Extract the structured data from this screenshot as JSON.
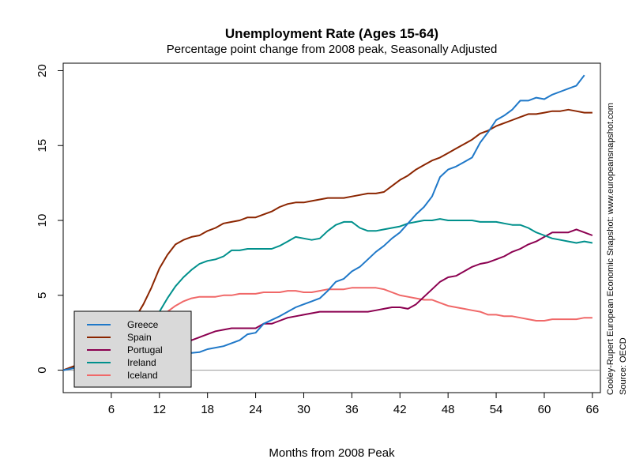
{
  "chart_data": {
    "type": "line",
    "title": "Unemployment Rate (Ages 15-64)",
    "subtitle": "Percentage point change from 2008 peak, Seasonally Adjusted",
    "xlabel": "Months from 2008 Peak",
    "ylabel": "",
    "xlim": [
      0,
      67
    ],
    "ylim": [
      -1.5,
      20.5
    ],
    "x_ticks": [
      6,
      12,
      18,
      24,
      30,
      36,
      42,
      48,
      54,
      60,
      66
    ],
    "y_ticks": [
      0,
      5,
      10,
      15,
      20
    ],
    "baseline": 0,
    "grid": false,
    "legend_position": "bottom-left",
    "source_note": "Cooley-Rupert European Economic Snapshot: www.europeansnapshot.com",
    "source": "Source: OECD",
    "series": [
      {
        "name": "Greece",
        "color": "#1f78c8",
        "x": [
          0,
          3,
          6,
          9,
          12,
          15,
          17,
          18,
          20,
          22,
          23,
          24,
          25,
          27,
          29,
          31,
          32,
          33,
          34,
          35,
          36,
          37,
          38,
          39,
          40,
          41,
          42,
          43,
          44,
          45,
          46,
          47,
          48,
          49,
          50,
          51,
          52,
          53,
          54,
          55,
          56,
          57,
          58,
          59,
          60,
          61,
          62,
          63,
          64,
          65
        ],
        "values": [
          0,
          0.3,
          0.5,
          0.7,
          0.9,
          1.1,
          1.2,
          1.4,
          1.6,
          2.0,
          2.4,
          2.5,
          3.1,
          3.6,
          4.2,
          4.6,
          4.8,
          5.3,
          5.9,
          6.1,
          6.6,
          6.9,
          7.4,
          7.9,
          8.3,
          8.8,
          9.2,
          9.8,
          10.4,
          10.9,
          11.6,
          12.9,
          13.4,
          13.6,
          13.9,
          14.2,
          15.2,
          15.9,
          16.7,
          17.0,
          17.4,
          18.0,
          18.0,
          18.2,
          18.1,
          18.4,
          18.6,
          18.8,
          19.0,
          19.7
        ]
      },
      {
        "name": "Spain",
        "color": "#8b2500",
        "x": [
          0,
          3,
          6,
          9,
          10,
          11,
          12,
          13,
          14,
          15,
          16,
          17,
          18,
          19,
          20,
          21,
          22,
          23,
          24,
          25,
          26,
          27,
          28,
          29,
          30,
          31,
          32,
          33,
          34,
          35,
          36,
          37,
          38,
          39,
          40,
          41,
          42,
          43,
          44,
          45,
          46,
          47,
          48,
          49,
          50,
          51,
          52,
          53,
          54,
          55,
          56,
          57,
          58,
          59,
          60,
          61,
          62,
          63,
          64,
          65,
          66
        ],
        "values": [
          0,
          0.6,
          1.8,
          3.5,
          4.4,
          5.5,
          6.8,
          7.7,
          8.4,
          8.7,
          8.9,
          9.0,
          9.3,
          9.5,
          9.8,
          9.9,
          10.0,
          10.2,
          10.2,
          10.4,
          10.6,
          10.9,
          11.1,
          11.2,
          11.2,
          11.3,
          11.4,
          11.5,
          11.5,
          11.5,
          11.6,
          11.7,
          11.8,
          11.8,
          11.9,
          12.3,
          12.7,
          13.0,
          13.4,
          13.7,
          14.0,
          14.2,
          14.5,
          14.8,
          15.1,
          15.4,
          15.8,
          16.0,
          16.3,
          16.5,
          16.7,
          16.9,
          17.1,
          17.1,
          17.2,
          17.3,
          17.3,
          17.4,
          17.3,
          17.2,
          17.2
        ]
      },
      {
        "name": "Portugal",
        "color": "#8b0050",
        "x": [
          0,
          3,
          6,
          9,
          12,
          15,
          16,
          17,
          18,
          19,
          20,
          21,
          22,
          23,
          24,
          25,
          26,
          27,
          28,
          29,
          30,
          31,
          32,
          33,
          34,
          35,
          36,
          37,
          38,
          39,
          40,
          41,
          42,
          43,
          44,
          45,
          46,
          47,
          48,
          49,
          50,
          51,
          52,
          53,
          54,
          55,
          56,
          57,
          58,
          59,
          60,
          61,
          62,
          63,
          64,
          65,
          66
        ],
        "values": [
          0,
          0.5,
          0.9,
          1.2,
          1.5,
          1.8,
          2.0,
          2.2,
          2.4,
          2.6,
          2.7,
          2.8,
          2.8,
          2.8,
          2.8,
          3.1,
          3.1,
          3.3,
          3.5,
          3.6,
          3.7,
          3.8,
          3.9,
          3.9,
          3.9,
          3.9,
          3.9,
          3.9,
          3.9,
          4.0,
          4.1,
          4.2,
          4.2,
          4.1,
          4.4,
          4.9,
          5.4,
          5.9,
          6.2,
          6.3,
          6.6,
          6.9,
          7.1,
          7.2,
          7.4,
          7.6,
          7.9,
          8.1,
          8.4,
          8.6,
          8.9,
          9.2,
          9.2,
          9.2,
          9.4,
          9.2,
          9.0
        ]
      },
      {
        "name": "Ireland",
        "color": "#00908c",
        "x": [
          0,
          3,
          6,
          9,
          11,
          12,
          13,
          14,
          15,
          16,
          17,
          18,
          19,
          20,
          21,
          22,
          23,
          24,
          25,
          26,
          27,
          28,
          29,
          30,
          31,
          32,
          33,
          34,
          35,
          36,
          37,
          38,
          39,
          40,
          41,
          42,
          43,
          44,
          45,
          46,
          47,
          48,
          49,
          50,
          51,
          52,
          53,
          54,
          55,
          56,
          57,
          58,
          59,
          60,
          61,
          62,
          63,
          64,
          65,
          66
        ],
        "values": [
          0,
          0.5,
          1.0,
          2.0,
          3.0,
          3.9,
          4.8,
          5.6,
          6.2,
          6.7,
          7.1,
          7.3,
          7.4,
          7.6,
          8.0,
          8.0,
          8.1,
          8.1,
          8.1,
          8.1,
          8.3,
          8.6,
          8.9,
          8.8,
          8.7,
          8.8,
          9.3,
          9.7,
          9.9,
          9.9,
          9.5,
          9.3,
          9.3,
          9.4,
          9.5,
          9.6,
          9.8,
          9.9,
          10.0,
          10.0,
          10.1,
          10.0,
          10.0,
          10.0,
          10.0,
          9.9,
          9.9,
          9.9,
          9.8,
          9.7,
          9.7,
          9.5,
          9.2,
          9.0,
          8.8,
          8.7,
          8.6,
          8.5,
          8.6,
          8.5
        ]
      },
      {
        "name": "Iceland",
        "color": "#f06868",
        "x": [
          0,
          3,
          6,
          9,
          12,
          13,
          14,
          15,
          16,
          17,
          18,
          19,
          20,
          21,
          22,
          23,
          24,
          25,
          26,
          27,
          28,
          29,
          30,
          31,
          32,
          33,
          34,
          35,
          36,
          37,
          38,
          39,
          40,
          41,
          42,
          43,
          44,
          45,
          46,
          47,
          48,
          49,
          50,
          51,
          52,
          53,
          54,
          55,
          56,
          57,
          58,
          59,
          60,
          61,
          62,
          63,
          64,
          65,
          66
        ],
        "values": [
          0,
          0.5,
          1.2,
          2.3,
          3.4,
          3.9,
          4.3,
          4.6,
          4.8,
          4.9,
          4.9,
          4.9,
          5.0,
          5.0,
          5.1,
          5.1,
          5.1,
          5.2,
          5.2,
          5.2,
          5.3,
          5.3,
          5.2,
          5.2,
          5.3,
          5.4,
          5.4,
          5.4,
          5.5,
          5.5,
          5.5,
          5.5,
          5.4,
          5.2,
          5.0,
          4.9,
          4.8,
          4.7,
          4.7,
          4.5,
          4.3,
          4.2,
          4.1,
          4.0,
          3.9,
          3.7,
          3.7,
          3.6,
          3.6,
          3.5,
          3.4,
          3.3,
          3.3,
          3.4,
          3.4,
          3.4,
          3.4,
          3.5,
          3.5
        ]
      }
    ]
  }
}
